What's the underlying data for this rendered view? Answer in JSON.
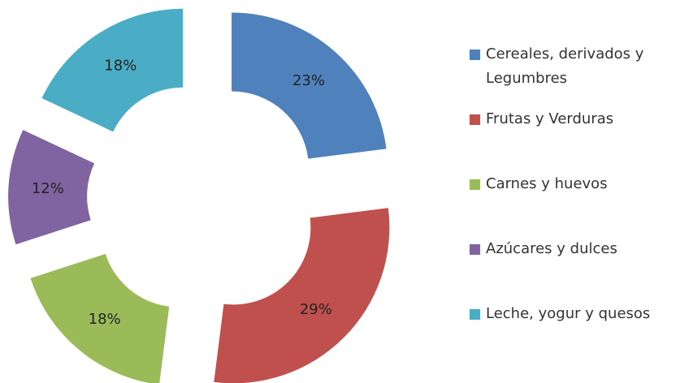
{
  "chart_data": {
    "type": "donut",
    "categories": [
      "Cereales, derivados y Legumbres",
      "Frutas y Verduras",
      "Carnes y huevos",
      "Azúcares y dulces",
      "Leche, yogur y quesos"
    ],
    "values": [
      23,
      29,
      18,
      12,
      18
    ],
    "value_labels": [
      "23%",
      "29%",
      "18%",
      "12%",
      "18%"
    ],
    "colors": [
      "#4f81bd",
      "#c0504d",
      "#9bbb59",
      "#8064a2",
      "#4bacc6"
    ],
    "legend": "right"
  }
}
